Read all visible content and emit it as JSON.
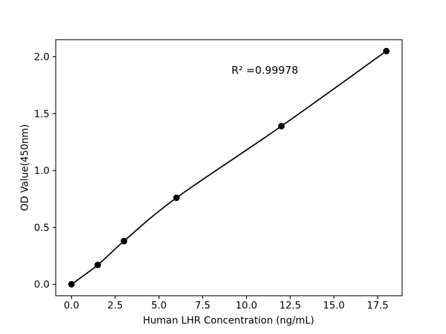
{
  "figure": {
    "background": "#ffffff",
    "foreground": "#000000"
  },
  "chart_data": {
    "type": "scatter",
    "title": "",
    "xlabel": "Human LHR Concentration (ng/mL)",
    "ylabel": "OD Value(450nm)",
    "x": [
      0,
      1.5,
      3,
      6,
      12,
      18
    ],
    "y": [
      0.0,
      0.17,
      0.38,
      0.76,
      1.39,
      2.05
    ],
    "fit_line": true,
    "annotation": {
      "text": "R² =0.99978",
      "x": 11.05,
      "y": 1.85
    },
    "xlim": [
      -0.9,
      18.9
    ],
    "ylim": [
      -0.1,
      2.15
    ],
    "xticks": {
      "values": [
        0,
        2.5,
        5,
        7.5,
        10,
        12.5,
        15,
        17.5
      ],
      "labels": [
        "0.0",
        "2.5",
        "5.0",
        "7.5",
        "10.0",
        "12.5",
        "15.0",
        "17.5"
      ]
    },
    "yticks": {
      "values": [
        0,
        0.5,
        1,
        1.5,
        2
      ],
      "labels": [
        "0.0",
        "0.5",
        "1.0",
        "1.5",
        "2.0"
      ]
    },
    "grid": false,
    "legend": "none",
    "marker_color": "#000000",
    "line_color": "#000000"
  }
}
